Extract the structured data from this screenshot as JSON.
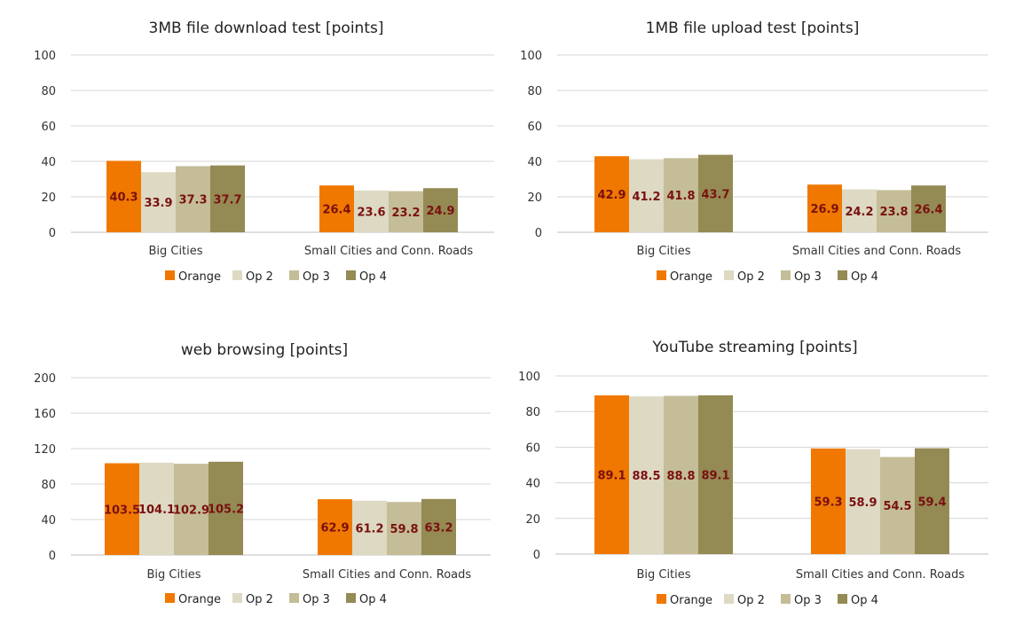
{
  "chart_data": [
    {
      "type": "bar",
      "title": "3MB file download test [points]",
      "categories": [
        "Big Cities",
        "Small Cities and Conn. Roads"
      ],
      "series": [
        {
          "name": "Orange",
          "color": "#f07800",
          "values": [
            40.3,
            26.4
          ]
        },
        {
          "name": "Op 2",
          "color": "#ddd9c3",
          "values": [
            33.9,
            23.6
          ]
        },
        {
          "name": "Op 3",
          "color": "#c4bd97",
          "values": [
            37.3,
            23.2
          ]
        },
        {
          "name": "Op 4",
          "color": "#948a54",
          "values": [
            37.7,
            24.9
          ]
        }
      ],
      "ylim": [
        0,
        100
      ],
      "yticks": [
        0,
        20,
        40,
        60,
        80,
        100
      ],
      "legend": "bottom"
    },
    {
      "type": "bar",
      "title": "1MB file upload test [points]",
      "categories": [
        "Big Cities",
        "Small Cities and Conn. Roads"
      ],
      "series": [
        {
          "name": "Orange",
          "color": "#f07800",
          "values": [
            42.9,
            26.9
          ]
        },
        {
          "name": "Op 2",
          "color": "#ddd9c3",
          "values": [
            41.2,
            24.2
          ]
        },
        {
          "name": "Op 3",
          "color": "#c4bd97",
          "values": [
            41.8,
            23.8
          ]
        },
        {
          "name": "Op 4",
          "color": "#948a54",
          "values": [
            43.7,
            26.4
          ]
        }
      ],
      "ylim": [
        0,
        100
      ],
      "yticks": [
        0,
        20,
        40,
        60,
        80,
        100
      ],
      "legend": "bottom"
    },
    {
      "type": "bar",
      "title": "web browsing [points]",
      "categories": [
        "Big Cities",
        "Small Cities and Conn. Roads"
      ],
      "series": [
        {
          "name": "Orange",
          "color": "#f07800",
          "values": [
            103.5,
            62.9
          ]
        },
        {
          "name": "Op 2",
          "color": "#ddd9c3",
          "values": [
            104.1,
            61.2
          ]
        },
        {
          "name": "Op 3",
          "color": "#c4bd97",
          "values": [
            102.9,
            59.8
          ]
        },
        {
          "name": "Op 4",
          "color": "#948a54",
          "values": [
            105.2,
            63.2
          ]
        }
      ],
      "ylim": [
        0,
        200
      ],
      "yticks": [
        0,
        40,
        80,
        120,
        160,
        200
      ],
      "legend": "bottom"
    },
    {
      "type": "bar",
      "title": "YouTube streaming [points]",
      "categories": [
        "Big Cities",
        "Small Cities and Conn. Roads"
      ],
      "series": [
        {
          "name": "Orange",
          "color": "#f07800",
          "values": [
            89.1,
            59.3
          ]
        },
        {
          "name": "Op 2",
          "color": "#ddd9c3",
          "values": [
            88.5,
            58.9
          ]
        },
        {
          "name": "Op 3",
          "color": "#c4bd97",
          "values": [
            88.8,
            54.5
          ]
        },
        {
          "name": "Op 4",
          "color": "#948a54",
          "values": [
            89.1,
            59.4
          ]
        }
      ],
      "ylim": [
        0,
        100
      ],
      "yticks": [
        0,
        20,
        40,
        60,
        80,
        100
      ],
      "legend": "bottom"
    }
  ]
}
